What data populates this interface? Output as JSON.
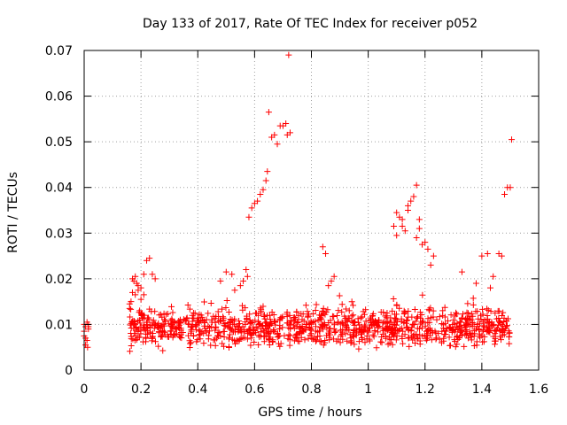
{
  "chart_data": {
    "type": "scatter",
    "title": "Day 133 of 2017, Rate Of TEC Index for receiver p052",
    "xlabel": "GPS time / hours",
    "ylabel": "ROTI / TECUs",
    "xlim": [
      0,
      1.6
    ],
    "ylim": [
      0,
      0.07
    ],
    "xticks": [
      0,
      0.2,
      0.4,
      0.6,
      0.8,
      1,
      1.2,
      1.4,
      1.6
    ],
    "yticks": [
      0,
      0.01,
      0.02,
      0.03,
      0.04,
      0.05,
      0.06,
      0.07
    ],
    "xtick_labels": [
      "0",
      "0.2",
      "0.4",
      "0.6",
      "0.8",
      "1",
      "1.2",
      "1.4",
      "1.6"
    ],
    "ytick_labels": [
      "0",
      "0.01",
      "0.02",
      "0.03",
      "0.04",
      "0.05",
      "0.06",
      "0.07"
    ],
    "grid": true,
    "marker": "+",
    "color": "#ff0000",
    "series": [
      {
        "name": "ROTI",
        "x": [
          0.0,
          0.005,
          0.01,
          0.015,
          0.0,
          0.005,
          0.01,
          0.015,
          0.005,
          0.012,
          0.015,
          0.0,
          0.16,
          0.165,
          0.17,
          0.175,
          0.18,
          0.185,
          0.19,
          0.2,
          0.21,
          0.22,
          0.23,
          0.24,
          0.25,
          0.18,
          0.19,
          0.2,
          0.21,
          0.17,
          0.16,
          0.48,
          0.5,
          0.52,
          0.53,
          0.55,
          0.56,
          0.57,
          0.575,
          0.58,
          0.59,
          0.6,
          0.61,
          0.62,
          0.63,
          0.64,
          0.645,
          0.65,
          0.66,
          0.67,
          0.68,
          0.69,
          0.7,
          0.71,
          0.715,
          0.72,
          0.725,
          0.84,
          0.85,
          0.86,
          0.87,
          0.88,
          1.09,
          1.1,
          1.11,
          1.12,
          1.13,
          1.14,
          1.15,
          1.16,
          1.17,
          1.18,
          1.19,
          1.2,
          1.21,
          1.22,
          1.23,
          1.17,
          1.18,
          1.1,
          1.12,
          1.14,
          1.33,
          1.38,
          1.4,
          1.42,
          1.43,
          1.44,
          1.46,
          1.47,
          1.48,
          1.49,
          1.5,
          1.505
        ],
        "y": [
          0.01,
          0.0095,
          0.0105,
          0.01,
          0.0075,
          0.007,
          0.0065,
          0.009,
          0.0055,
          0.005,
          0.0095,
          0.0085,
          0.0145,
          0.015,
          0.02,
          0.0195,
          0.0205,
          0.019,
          0.0185,
          0.018,
          0.021,
          0.024,
          0.0245,
          0.021,
          0.02,
          0.0165,
          0.0175,
          0.0155,
          0.0165,
          0.017,
          0.0135,
          0.0195,
          0.0215,
          0.021,
          0.0175,
          0.0185,
          0.0195,
          0.022,
          0.0205,
          0.0335,
          0.0355,
          0.0365,
          0.037,
          0.0385,
          0.0395,
          0.0415,
          0.0435,
          0.0565,
          0.051,
          0.0515,
          0.0495,
          0.0535,
          0.0535,
          0.054,
          0.0515,
          0.069,
          0.052,
          0.027,
          0.0255,
          0.0185,
          0.0195,
          0.0205,
          0.0315,
          0.0345,
          0.0335,
          0.033,
          0.0305,
          0.036,
          0.037,
          0.038,
          0.0405,
          0.033,
          0.0275,
          0.028,
          0.0265,
          0.023,
          0.025,
          0.029,
          0.031,
          0.0295,
          0.0315,
          0.035,
          0.0215,
          0.019,
          0.025,
          0.0255,
          0.018,
          0.0205,
          0.0255,
          0.025,
          0.0385,
          0.04,
          0.04,
          0.0505
        ]
      }
    ],
    "bulk_band": {
      "description": "dense cluster of low-value samples",
      "x_ranges": [
        [
          0.16,
          1.5
        ]
      ],
      "y_range": [
        0.0025,
        0.019
      ],
      "typical_center": 0.009,
      "count": 1100
    }
  }
}
